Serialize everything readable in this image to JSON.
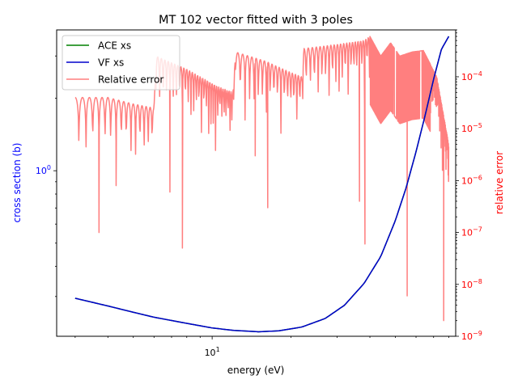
{
  "chart_data": {
    "type": "line",
    "title": "MT 102 vector fitted with 3 poles",
    "xlabel": "energy (eV)",
    "ylabel_left": "cross section (b)",
    "ylabel_right": "relative error",
    "xscale": "log",
    "yscale_left": "log",
    "yscale_right": "log",
    "xlim": [
      2.55,
      85
    ],
    "ylim_left": [
      0.205,
      3.85
    ],
    "ylim_right": [
      1e-09,
      0.0008
    ],
    "x_ticks": [
      {
        "value": 10,
        "base": "10",
        "exp": "1"
      }
    ],
    "y_ticks_left": [
      {
        "value": 1,
        "base": "10",
        "exp": "0"
      }
    ],
    "y_ticks_right": [
      {
        "value": 1e-09,
        "base": "10",
        "exp": "−9"
      },
      {
        "value": 1e-08,
        "base": "10",
        "exp": "−8"
      },
      {
        "value": 1e-07,
        "base": "10",
        "exp": "−7"
      },
      {
        "value": 1e-06,
        "base": "10",
        "exp": "−6"
      },
      {
        "value": 1e-05,
        "base": "10",
        "exp": "−5"
      },
      {
        "value": 0.0001,
        "base": "10",
        "exp": "−4"
      }
    ],
    "legend": {
      "position": "upper-left",
      "entries": [
        {
          "label": "ACE xs",
          "color": "#008000"
        },
        {
          "label": "VF xs",
          "color": "#0000cc"
        },
        {
          "label": "Relative error",
          "color": "#ff7f7f"
        }
      ]
    },
    "series": [
      {
        "name": "ACE xs",
        "axis": "left",
        "color": "#008000",
        "x": [
          3.0,
          4.0,
          5.0,
          6.0,
          8.0,
          10.0,
          12.0,
          15.0,
          18.0,
          22.0,
          27.0,
          32.0,
          38.0,
          44.0,
          50.0,
          55.0,
          60.0,
          65.0,
          70.0,
          75.0,
          80.0
        ],
        "y": [
          0.295,
          0.274,
          0.258,
          0.246,
          0.232,
          0.222,
          0.217,
          0.214,
          0.216,
          0.224,
          0.243,
          0.276,
          0.34,
          0.44,
          0.62,
          0.85,
          1.2,
          1.7,
          2.4,
          3.2,
          3.62
        ]
      },
      {
        "name": "VF xs",
        "axis": "left",
        "color": "#0000cc",
        "x": [
          3.0,
          4.0,
          5.0,
          6.0,
          8.0,
          10.0,
          12.0,
          15.0,
          18.0,
          22.0,
          27.0,
          32.0,
          38.0,
          44.0,
          50.0,
          55.0,
          60.0,
          65.0,
          70.0,
          75.0,
          80.0
        ],
        "y": [
          0.295,
          0.274,
          0.258,
          0.246,
          0.232,
          0.222,
          0.217,
          0.214,
          0.216,
          0.224,
          0.243,
          0.276,
          0.34,
          0.44,
          0.62,
          0.85,
          1.2,
          1.7,
          2.4,
          3.2,
          3.62
        ]
      },
      {
        "name": "Relative error",
        "axis": "right",
        "color": "#ff7f7f",
        "x_range": [
          3.0,
          80.0
        ],
        "peaks": [
          {
            "x": 3.0,
            "value": 4e-05
          },
          {
            "x": 4.0,
            "value": 4e-05
          },
          {
            "x": 5.0,
            "value": 3e-05
          },
          {
            "x": 6.0,
            "value": 2.5e-05
          },
          {
            "x": 6.1,
            "value": 0.00025
          },
          {
            "x": 8.0,
            "value": 0.00014
          },
          {
            "x": 9.0,
            "value": 0.0001
          },
          {
            "x": 10.5,
            "value": 6.5e-05
          },
          {
            "x": 12.0,
            "value": 5e-05
          },
          {
            "x": 12.3,
            "value": 0.0003
          },
          {
            "x": 16.0,
            "value": 0.0002
          },
          {
            "x": 20.0,
            "value": 0.00012
          },
          {
            "x": 22.0,
            "value": 0.0001
          },
          {
            "x": 22.4,
            "value": 0.00035
          },
          {
            "x": 30.0,
            "value": 0.00042
          },
          {
            "x": 38.0,
            "value": 0.0005
          },
          {
            "x": 40.0,
            "value": 0.0006
          },
          {
            "x": 44.0,
            "value": 0.00025
          },
          {
            "x": 48.0,
            "value": 0.00045
          },
          {
            "x": 52.0,
            "value": 0.00025
          },
          {
            "x": 58.0,
            "value": 0.0003
          },
          {
            "x": 64.0,
            "value": 0.00032
          },
          {
            "x": 72.0,
            "value": 0.0001
          },
          {
            "x": 80.0,
            "value": 5e-06
          }
        ],
        "sharp_dips": [
          {
            "x": 3.7,
            "value": 1e-07
          },
          {
            "x": 4.3,
            "value": 8e-07
          },
          {
            "x": 6.9,
            "value": 6e-07
          },
          {
            "x": 7.7,
            "value": 5e-08
          },
          {
            "x": 14.6,
            "value": 3e-06
          },
          {
            "x": 16.3,
            "value": 3e-07
          },
          {
            "x": 36.5,
            "value": 4e-07
          },
          {
            "x": 38.3,
            "value": 6e-08
          },
          {
            "x": 55.5,
            "value": 6e-09
          },
          {
            "x": 76.5,
            "value": 2e-09
          }
        ]
      }
    ]
  }
}
